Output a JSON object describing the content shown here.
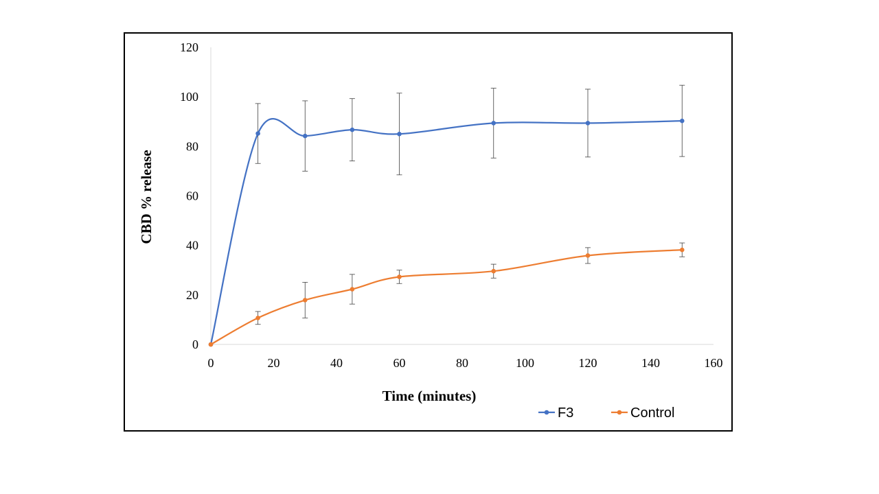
{
  "chart_data": {
    "type": "line",
    "xlabel": "Time (minutes)",
    "ylabel": "CBD % release",
    "xlim": [
      0,
      160
    ],
    "ylim": [
      0,
      120
    ],
    "xticks": [
      0,
      20,
      40,
      60,
      80,
      100,
      120,
      140,
      160
    ],
    "yticks": [
      0,
      20,
      40,
      60,
      80,
      100,
      120
    ],
    "grid": false,
    "legend_position": "bottom-right",
    "x": [
      0,
      15,
      30,
      45,
      60,
      90,
      120,
      150
    ],
    "series": [
      {
        "name": "F3",
        "color": "#4472C4",
        "values": [
          0,
          85.2,
          84.2,
          86.7,
          85.0,
          89.4,
          89.4,
          90.3
        ],
        "error": [
          0,
          12.1,
          14.2,
          12.6,
          16.5,
          14.1,
          13.7,
          14.4
        ]
      },
      {
        "name": "Control",
        "color": "#ED7D31",
        "values": [
          0,
          10.7,
          17.9,
          22.3,
          27.3,
          29.6,
          35.9,
          38.2
        ],
        "error": [
          0,
          2.6,
          7.2,
          6.0,
          2.7,
          2.8,
          3.2,
          2.8
        ]
      }
    ]
  }
}
